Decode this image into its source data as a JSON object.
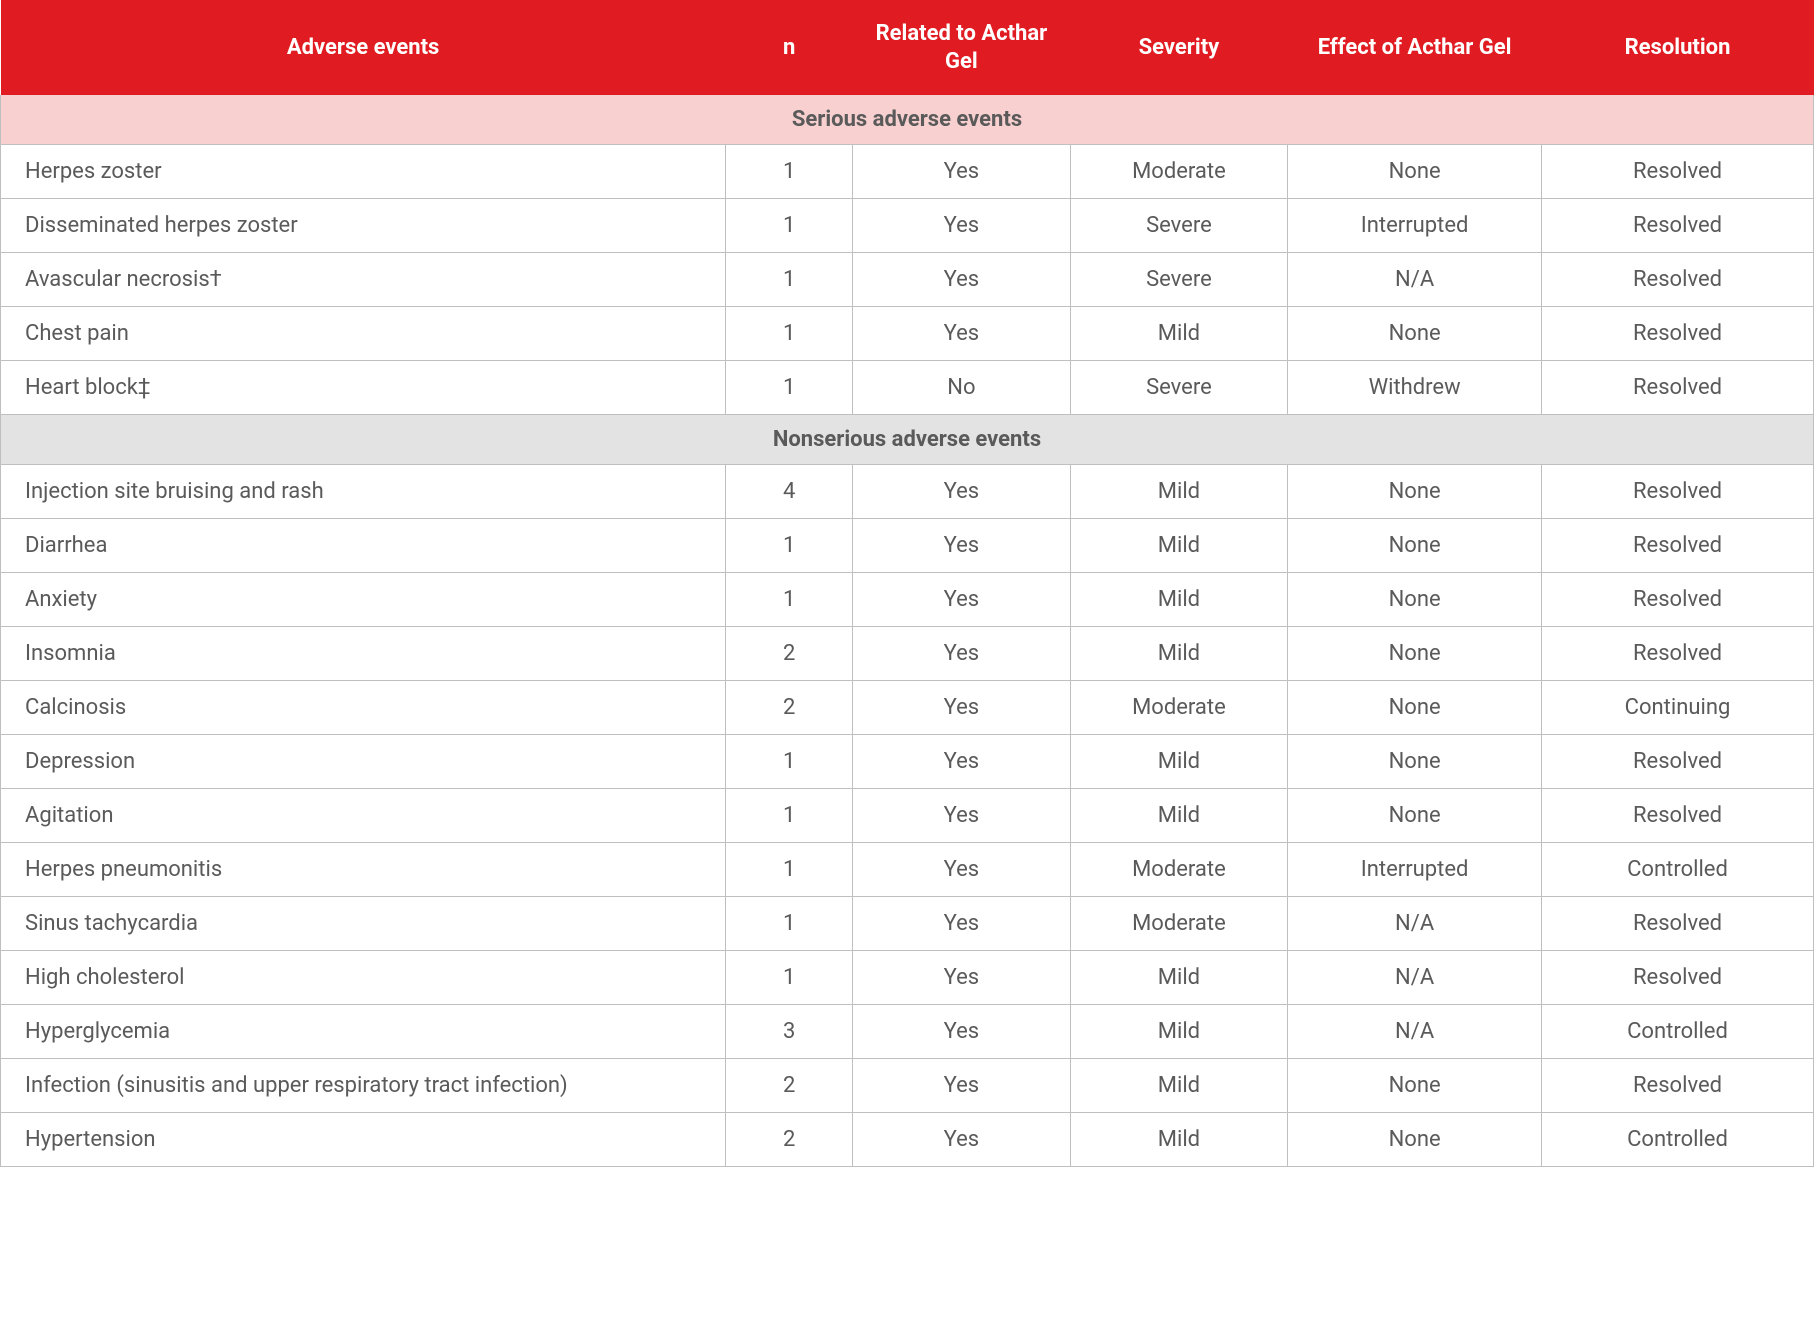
{
  "columns": {
    "events": "Adverse events",
    "n": "n",
    "related": "Related to Acthar Gel",
    "severity": "Severity",
    "effect": "Effect of Acthar Gel",
    "resolution": "Resolution"
  },
  "sections": [
    {
      "title": "Serious adverse events",
      "class": "serious",
      "rows": [
        {
          "name": "Herpes zoster",
          "n": "1",
          "related": "Yes",
          "severity": "Moderate",
          "effect": "None",
          "resolution": "Resolved"
        },
        {
          "name": "Disseminated herpes zoster",
          "n": "1",
          "related": "Yes",
          "severity": "Severe",
          "effect": "Interrupted",
          "resolution": "Resolved"
        },
        {
          "name": "Avascular necrosis†",
          "n": "1",
          "related": "Yes",
          "severity": "Severe",
          "effect": "N/A",
          "resolution": "Resolved"
        },
        {
          "name": "Chest pain",
          "n": "1",
          "related": "Yes",
          "severity": "Mild",
          "effect": "None",
          "resolution": "Resolved"
        },
        {
          "name": "Heart block‡",
          "n": "1",
          "related": "No",
          "severity": "Severe",
          "effect": "Withdrew",
          "resolution": "Resolved"
        }
      ]
    },
    {
      "title": "Nonserious adverse events",
      "class": "nonserious",
      "rows": [
        {
          "name": "Injection site bruising and rash",
          "n": "4",
          "related": "Yes",
          "severity": "Mild",
          "effect": "None",
          "resolution": "Resolved"
        },
        {
          "name": "Diarrhea",
          "n": "1",
          "related": "Yes",
          "severity": "Mild",
          "effect": "None",
          "resolution": "Resolved"
        },
        {
          "name": "Anxiety",
          "n": "1",
          "related": "Yes",
          "severity": "Mild",
          "effect": "None",
          "resolution": "Resolved"
        },
        {
          "name": "Insomnia",
          "n": "2",
          "related": "Yes",
          "severity": "Mild",
          "effect": "None",
          "resolution": "Resolved"
        },
        {
          "name": "Calcinosis",
          "n": "2",
          "related": "Yes",
          "severity": "Moderate",
          "effect": "None",
          "resolution": "Continuing"
        },
        {
          "name": "Depression",
          "n": "1",
          "related": "Yes",
          "severity": "Mild",
          "effect": "None",
          "resolution": "Resolved"
        },
        {
          "name": "Agitation",
          "n": "1",
          "related": "Yes",
          "severity": "Mild",
          "effect": "None",
          "resolution": "Resolved"
        },
        {
          "name": "Herpes pneumonitis",
          "n": "1",
          "related": "Yes",
          "severity": "Moderate",
          "effect": "Interrupted",
          "resolution": "Controlled"
        },
        {
          "name": "Sinus tachycardia",
          "n": "1",
          "related": "Yes",
          "severity": "Moderate",
          "effect": "N/A",
          "resolution": "Resolved"
        },
        {
          "name": "High cholesterol",
          "n": "1",
          "related": "Yes",
          "severity": "Mild",
          "effect": "N/A",
          "resolution": "Resolved"
        },
        {
          "name": "Hyperglycemia",
          "n": "3",
          "related": "Yes",
          "severity": "Mild",
          "effect": "N/A",
          "resolution": "Controlled"
        },
        {
          "name": "Infection (sinusitis and upper respiratory tract infection)",
          "n": "2",
          "related": "Yes",
          "severity": "Mild",
          "effect": "None",
          "resolution": "Resolved"
        },
        {
          "name": "Hypertension",
          "n": "2",
          "related": "Yes",
          "severity": "Mild",
          "effect": "None",
          "resolution": "Controlled"
        }
      ]
    }
  ],
  "styling": {
    "header_bg": "#e11b22",
    "header_fg": "#ffffff",
    "section_serious_bg": "#f8d0d0",
    "section_nonserious_bg": "#e3e3e3",
    "border_color": "#bfbfbf",
    "text_color": "#5a5a5a",
    "font_size_pt": 16
  }
}
